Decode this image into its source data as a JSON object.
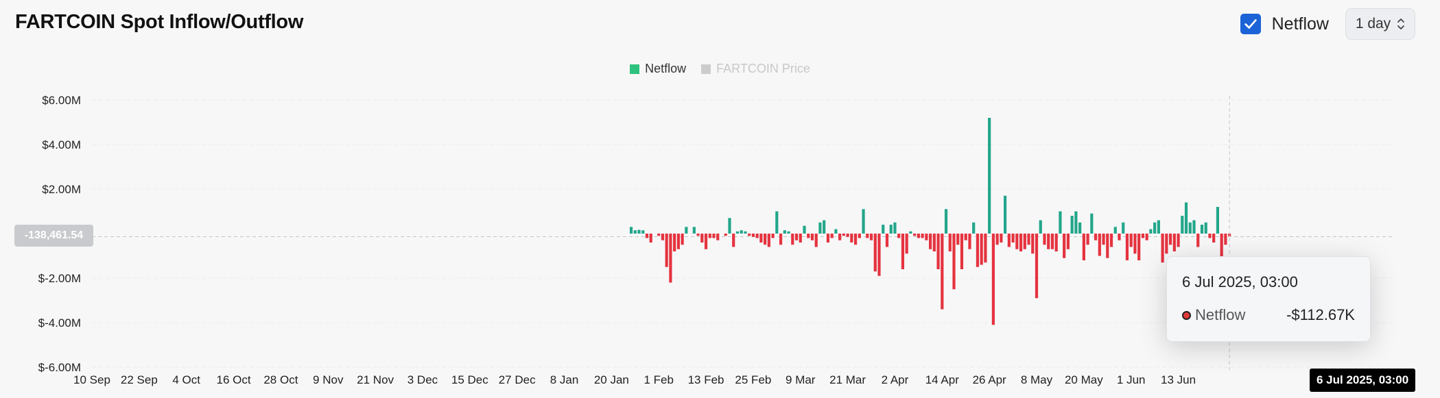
{
  "header": {
    "title": "FARTCOIN Spot Inflow/Outflow",
    "netflow_label": "Netflow",
    "netflow_checked": true,
    "interval": "1 day"
  },
  "legend": [
    {
      "label": "Netflow",
      "color": "#2ec27e",
      "active": true
    },
    {
      "label": "FARTCOIN Price",
      "color": "#cccccc",
      "active": false
    }
  ],
  "colors": {
    "positive": "#22a68a",
    "negative": "#e5333f",
    "accent": "#1b63d6"
  },
  "chart_data": {
    "type": "bar",
    "series_name": "Netflow",
    "y_tick_labels": [
      "$6.00M",
      "$4.00M",
      "$2.00M",
      "$-2.00M",
      "$-4.00M",
      "$-6.00M"
    ],
    "y_ticks": [
      6,
      4,
      2,
      -2,
      -4,
      -6
    ],
    "ylim": [
      -6,
      6
    ],
    "y_unit": "millions USD",
    "x_tick_labels": [
      "10 Sep",
      "22 Sep",
      "4 Oct",
      "16 Oct",
      "28 Oct",
      "9 Nov",
      "21 Nov",
      "3 Dec",
      "15 Dec",
      "27 Dec",
      "8 Jan",
      "20 Jan",
      "1 Feb",
      "13 Feb",
      "25 Feb",
      "9 Mar",
      "21 Mar",
      "2 Apr",
      "14 Apr",
      "26 Apr",
      "8 May",
      "20 May",
      "1 Jun",
      "13 Jun"
    ],
    "x_start_label": "10 Sep",
    "days_total": 299,
    "data_start_day": 137,
    "values": [
      0.3,
      0.15,
      0.17,
      0.15,
      -0.2,
      -0.4,
      0,
      -0.1,
      -0.3,
      -1.5,
      -2.2,
      -0.8,
      -0.7,
      -0.5,
      0.3,
      0,
      0.3,
      -0.1,
      -0.4,
      -0.7,
      -0.2,
      -0.2,
      -0.3,
      0,
      -0.1,
      0.7,
      -0.6,
      0.1,
      0.15,
      0.1,
      -0.1,
      -0.15,
      -0.2,
      -0.4,
      -0.5,
      -0.6,
      -0.2,
      1.0,
      -0.5,
      0.15,
      0.1,
      -0.5,
      -0.3,
      -0.4,
      0.35,
      -0.2,
      -0.3,
      -0.6,
      0.5,
      0.6,
      -0.4,
      -0.2,
      0.2,
      -0.3,
      -0.1,
      -0.15,
      -0.4,
      -0.5,
      -0.2,
      1.1,
      -0.2,
      -0.3,
      -1.7,
      -1.9,
      0.4,
      -0.6,
      0.4,
      0.5,
      -0.2,
      -1.6,
      -0.9,
      0.1,
      -0.1,
      -0.2,
      -0.2,
      -0.3,
      -0.7,
      -0.8,
      -1.6,
      -3.4,
      1.1,
      -0.8,
      -2.5,
      -0.5,
      -1.6,
      -0.3,
      -0.7,
      0.5,
      -1.5,
      -1.4,
      -1.3,
      5.2,
      -4.1,
      -0.5,
      -0.4,
      1.7,
      -0.6,
      -0.4,
      -0.7,
      -0.8,
      -0.7,
      -0.5,
      -0.9,
      -2.9,
      0.6,
      -0.5,
      -0.7,
      -0.7,
      -0.8,
      1.0,
      -1.1,
      -0.7,
      0.8,
      1.0,
      0.5,
      -1.2,
      -0.5,
      0.9,
      -0.3,
      -1.0,
      -0.5,
      -1.1,
      -0.6,
      0.3,
      -0.3,
      0.5,
      -1.2,
      -0.6,
      -0.9,
      -1.2,
      -0.2,
      -0.3,
      0.2,
      0.5,
      0.6,
      -1.3,
      -0.9,
      -0.5,
      -0.8,
      -0.6,
      0.8,
      1.4,
      0.5,
      0.6,
      -0.6,
      0.4,
      0.5,
      -0.2,
      -0.4,
      1.2,
      -1.2,
      -0.5,
      -0.11
    ],
    "hover": {
      "date": "6 Jul 2025, 03:00",
      "series": "Netflow",
      "value": "-$112.67K"
    },
    "crosshair_y_label": "-138,461.54"
  }
}
